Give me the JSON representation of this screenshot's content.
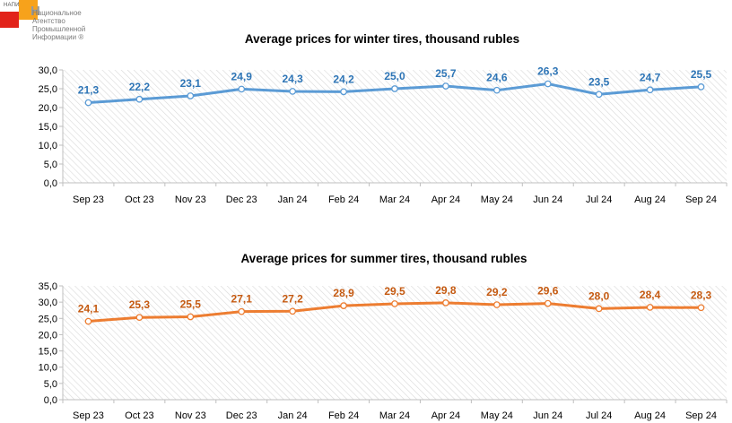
{
  "logo": {
    "abbr": "НАПИ",
    "letter": "Н",
    "name": "Национальное\nАгентство\nПромышленной\nИнформации ®"
  },
  "colors": {
    "winter": "#5b9bd5",
    "winter_label": "#2e75b6",
    "summer": "#ed7d31",
    "summer_label": "#c55a11",
    "grid_hatch": "#d9d9d9"
  },
  "chart_data": [
    {
      "type": "line",
      "title": "Average prices for winter tires, thousand rubles",
      "categories": [
        "Sep 23",
        "Oct 23",
        "Nov 23",
        "Dec 23",
        "Jan 24",
        "Feb 24",
        "Mar 24",
        "Apr 24",
        "May 24",
        "Jun 24",
        "Jul 24",
        "Aug 24",
        "Sep 24"
      ],
      "values": [
        21.3,
        22.2,
        23.1,
        24.9,
        24.3,
        24.2,
        25.0,
        25.7,
        24.6,
        26.3,
        23.5,
        24.7,
        25.5
      ],
      "value_labels": [
        "21,3",
        "22,2",
        "23,1",
        "24,9",
        "24,3",
        "24,2",
        "25,0",
        "25,7",
        "24,6",
        "26,3",
        "23,5",
        "24,7",
        "25,5"
      ],
      "yticks": [
        "0,0",
        "5,0",
        "10,0",
        "15,0",
        "20,0",
        "25,0",
        "30,0"
      ],
      "ylim": [
        0,
        30
      ],
      "legend": "none"
    },
    {
      "type": "line",
      "title": "Average prices for summer tires, thousand rubles",
      "categories": [
        "Sep 23",
        "Oct 23",
        "Nov 23",
        "Dec 23",
        "Jan 24",
        "Feb 24",
        "Mar 24",
        "Apr 24",
        "May 24",
        "Jun 24",
        "Jul 24",
        "Aug 24",
        "Sep 24"
      ],
      "values": [
        24.1,
        25.3,
        25.5,
        27.1,
        27.2,
        28.9,
        29.5,
        29.8,
        29.2,
        29.6,
        28.0,
        28.4,
        28.3
      ],
      "value_labels": [
        "24,1",
        "25,3",
        "25,5",
        "27,1",
        "27,2",
        "28,9",
        "29,5",
        "29,8",
        "29,2",
        "29,6",
        "28,0",
        "28,4",
        "28,3"
      ],
      "yticks": [
        "0,0",
        "5,0",
        "10,0",
        "15,0",
        "20,0",
        "25,0",
        "30,0",
        "35,0"
      ],
      "ylim": [
        0,
        35
      ],
      "legend": "none"
    }
  ]
}
